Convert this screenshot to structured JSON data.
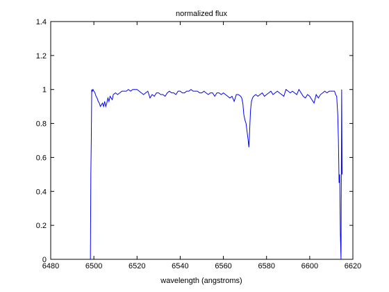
{
  "chart_data": {
    "type": "line",
    "title": "normalized flux",
    "xlabel": "wavelength (angstroms)",
    "ylabel": "",
    "xlim": [
      6480,
      6620
    ],
    "ylim": [
      0,
      1.4
    ],
    "xticks": [
      6480,
      6500,
      6520,
      6540,
      6560,
      6580,
      6600,
      6620
    ],
    "yticks": [
      0,
      0.2,
      0.4,
      0.6,
      0.8,
      1,
      1.2,
      1.4
    ],
    "xtick_labels": [
      "6480",
      "6500",
      "6520",
      "6540",
      "6560",
      "6580",
      "6600",
      "6620"
    ],
    "ytick_labels": [
      "0",
      "0.2",
      "0.4",
      "0.6",
      "0.8",
      "1",
      "1.2",
      "1.4"
    ],
    "grid": false,
    "line_color": "#0000ff",
    "series": [
      {
        "x": [
          6498.4,
          6498.6,
          6498.8,
          6499.0,
          6499.3,
          6499.6,
          6500.0,
          6500.5,
          6501.0,
          6501.5,
          6502.0,
          6502.5,
          6503.0,
          6503.5,
          6504.0,
          6504.5,
          6505.0,
          6505.5,
          6506.0,
          6506.5,
          6507.0,
          6507.5,
          6508.0,
          6508.5,
          6509.0,
          6510.0,
          6511.0,
          6512.0,
          6513.0,
          6514.0,
          6515.0,
          6516.0,
          6517.0,
          6518.0,
          6519.0,
          6520.0,
          6521.0,
          6522.0,
          6523.0,
          6524.0,
          6525.0,
          6526.0,
          6527.0,
          6528.0,
          6529.0,
          6530.0,
          6531.0,
          6532.0,
          6533.0,
          6534.0,
          6535.0,
          6536.0,
          6537.0,
          6538.0,
          6539.0,
          6540.0,
          6541.0,
          6542.0,
          6543.0,
          6544.0,
          6545.0,
          6546.0,
          6547.0,
          6548.0,
          6549.0,
          6550.0,
          6551.0,
          6552.0,
          6553.0,
          6554.0,
          6555.0,
          6556.0,
          6557.0,
          6558.0,
          6559.0,
          6560.0,
          6561.0,
          6562.0,
          6563.0,
          6564.0,
          6565.0,
          6566.0,
          6567.0,
          6568.0,
          6568.5,
          6569.0,
          6569.5,
          6570.0,
          6570.5,
          6571.0,
          6571.5,
          6571.8,
          6572.0,
          6572.3,
          6572.6,
          6573.0,
          6573.5,
          6574.0,
          6575.0,
          6576.0,
          6577.0,
          6578.0,
          6579.0,
          6580.0,
          6581.0,
          6582.0,
          6583.0,
          6584.0,
          6585.0,
          6586.0,
          6587.0,
          6588.0,
          6589.0,
          6590.0,
          6591.0,
          6592.0,
          6593.0,
          6594.0,
          6595.0,
          6596.0,
          6597.0,
          6598.0,
          6599.0,
          6600.0,
          6601.0,
          6602.0,
          6603.0,
          6604.0,
          6605.0,
          6606.0,
          6607.0,
          6608.0,
          6609.0,
          6610.0,
          6611.0,
          6611.5,
          6612.0,
          6612.5,
          6613.0,
          6613.3,
          6613.6,
          6613.9,
          6614.2,
          6614.5,
          6614.8,
          6615.0
        ],
        "y": [
          0.0,
          0.5,
          0.7,
          1.0,
          0.99,
          1.0,
          0.99,
          0.98,
          0.96,
          0.95,
          0.93,
          0.92,
          0.9,
          0.91,
          0.92,
          0.9,
          0.93,
          0.9,
          0.92,
          0.95,
          0.93,
          0.96,
          0.95,
          0.94,
          0.97,
          0.98,
          0.97,
          0.98,
          0.99,
          0.99,
          0.99,
          1.0,
          0.99,
          1.0,
          1.0,
          1.0,
          0.99,
          0.98,
          0.97,
          0.98,
          0.99,
          0.95,
          0.97,
          0.96,
          0.98,
          0.98,
          0.97,
          0.97,
          0.96,
          0.98,
          0.99,
          0.98,
          0.98,
          0.97,
          0.99,
          0.99,
          0.98,
          0.98,
          0.99,
          0.99,
          1.0,
          0.99,
          0.99,
          0.99,
          0.98,
          0.98,
          0.99,
          0.98,
          0.97,
          0.98,
          0.98,
          0.96,
          0.98,
          0.98,
          0.97,
          0.98,
          0.97,
          0.96,
          0.95,
          0.96,
          0.93,
          0.97,
          0.97,
          0.96,
          0.95,
          0.92,
          0.85,
          0.82,
          0.8,
          0.75,
          0.7,
          0.66,
          0.7,
          0.8,
          0.88,
          0.93,
          0.95,
          0.96,
          0.97,
          0.96,
          0.97,
          0.98,
          0.96,
          0.97,
          0.98,
          0.99,
          0.97,
          0.98,
          0.99,
          0.98,
          0.97,
          0.96,
          1.0,
          0.99,
          0.98,
          0.99,
          0.98,
          0.97,
          1.0,
          0.98,
          0.96,
          0.95,
          0.97,
          0.96,
          0.94,
          0.92,
          0.97,
          0.95,
          0.97,
          0.98,
          0.99,
          0.98,
          0.99,
          0.99,
          0.99,
          0.99,
          0.97,
          0.96,
          0.85,
          0.7,
          0.45,
          0.5,
          0.15,
          0.0,
          1.0,
          0.5
        ]
      }
    ]
  }
}
